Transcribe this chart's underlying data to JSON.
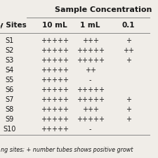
{
  "title": "Sample Concentration",
  "col_headers": [
    "10 mL",
    "1 mL",
    "0.1"
  ],
  "row_headers": [
    "S1",
    "S2",
    "S3",
    "S4",
    "S5",
    "S6",
    "S7",
    "S8",
    "S9",
    "S10"
  ],
  "left_label": "y Sites",
  "cells": [
    [
      "+++++",
      "+++",
      "+"
    ],
    [
      "+++++",
      "+++++",
      "++"
    ],
    [
      "+++++",
      "+++++",
      "+"
    ],
    [
      "+++++",
      "++",
      ""
    ],
    [
      "+++++",
      "-",
      ""
    ],
    [
      "+++++",
      "+++++",
      ""
    ],
    [
      "+++++",
      "+++++",
      "+"
    ],
    [
      "+++++",
      "+++",
      "+"
    ],
    [
      "+++++",
      "+++++",
      "+"
    ],
    [
      "+++++",
      "-",
      ""
    ]
  ],
  "footer": "ng sites; + number tubes shows positive growt",
  "bg_color": "#f0ede8",
  "text_color": "#1a1a1a",
  "line_color": "#888888",
  "title_fontsize": 8.0,
  "header_fontsize": 7.5,
  "cell_fontsize": 7.0,
  "footer_fontsize": 5.8
}
